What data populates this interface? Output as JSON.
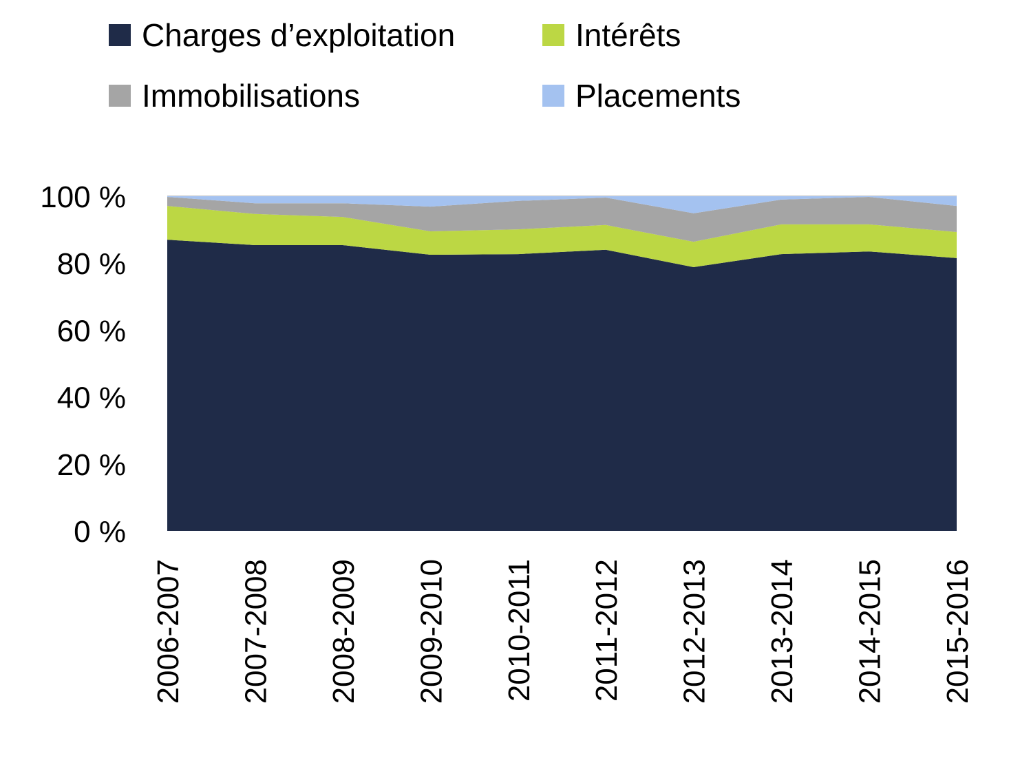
{
  "chart_data": {
    "type": "area",
    "stacked": "percent",
    "title": "",
    "xlabel": "",
    "ylabel": "",
    "ylim": [
      0,
      100
    ],
    "yticks": [
      "0 %",
      "20 %",
      "40 %",
      "60 %",
      "80 %",
      "100 %"
    ],
    "legend_position": "top",
    "categories": [
      "2006-2007",
      "2007-2008",
      "2008-2009",
      "2009-2010",
      "2010-2011",
      "2011-2012",
      "2012-2013",
      "2013-2014",
      "2014-2015",
      "2015-2016"
    ],
    "series": [
      {
        "name": "Charges d’exploitation",
        "color": "#1f2b48",
        "values": [
          87.0,
          85.4,
          85.4,
          82.5,
          82.7,
          84.0,
          78.8,
          82.7,
          83.5,
          81.5
        ]
      },
      {
        "name": "Intérêts",
        "color": "#bcd744",
        "values": [
          10.1,
          9.3,
          8.4,
          7.0,
          7.4,
          7.4,
          7.6,
          8.9,
          8.1,
          7.8
        ]
      },
      {
        "name": "Immobilisations",
        "color": "#a5a5a5",
        "values": [
          2.7,
          3.2,
          4.1,
          7.4,
          8.5,
          8.2,
          8.5,
          7.4,
          8.2,
          7.8
        ]
      },
      {
        "name": "Placements",
        "color": "#a4c2f0",
        "values": [
          0.2,
          2.1,
          2.1,
          3.1,
          1.4,
          0.4,
          5.1,
          1.0,
          0.2,
          2.9
        ]
      }
    ]
  }
}
